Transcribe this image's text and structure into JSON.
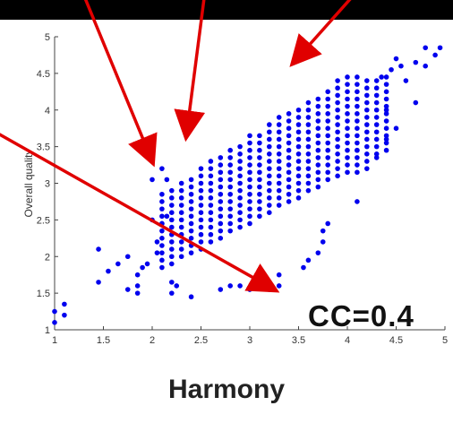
{
  "chart_data": {
    "type": "scatter",
    "xlabel": "Harmony",
    "ylabel": "Overall quality",
    "xlim": [
      1,
      5
    ],
    "ylim": [
      1,
      5
    ],
    "x_ticks": [
      "1",
      "1.5",
      "2",
      "2.5",
      "3",
      "3.5",
      "4",
      "4.5",
      "5"
    ],
    "y_ticks": [
      "1",
      "1.5",
      "2",
      "2.5",
      "3",
      "3.5",
      "4",
      "4.5",
      "5"
    ],
    "annotation": "CC=0.4",
    "marker_color": "#0000ee",
    "arrow_color": "#e00000",
    "arrow_targets": [
      {
        "x": 2.0,
        "y": 3.3
      },
      {
        "x": 2.35,
        "y": 3.65
      },
      {
        "x": 3.45,
        "y": 4.65
      },
      {
        "x": 3.25,
        "y": 1.55
      }
    ],
    "points": [
      [
        1.0,
        1.1
      ],
      [
        1.0,
        1.25
      ],
      [
        1.1,
        1.2
      ],
      [
        1.1,
        1.35
      ],
      [
        1.45,
        1.65
      ],
      [
        1.45,
        2.1
      ],
      [
        1.55,
        1.8
      ],
      [
        1.65,
        1.9
      ],
      [
        1.75,
        1.55
      ],
      [
        1.75,
        2.0
      ],
      [
        1.85,
        1.5
      ],
      [
        1.85,
        1.6
      ],
      [
        1.85,
        1.75
      ],
      [
        1.9,
        1.85
      ],
      [
        1.95,
        1.9
      ],
      [
        2.0,
        2.5
      ],
      [
        2.0,
        3.05
      ],
      [
        2.0,
        3.3
      ],
      [
        2.05,
        2.05
      ],
      [
        2.05,
        2.2
      ],
      [
        2.1,
        2.45
      ],
      [
        2.1,
        3.2
      ],
      [
        2.15,
        2.55
      ],
      [
        2.15,
        3.05
      ],
      [
        2.2,
        1.5
      ],
      [
        2.2,
        1.65
      ],
      [
        2.25,
        1.6
      ],
      [
        2.4,
        1.45
      ],
      [
        2.7,
        1.55
      ],
      [
        2.8,
        1.6
      ],
      [
        2.9,
        1.6
      ],
      [
        3.0,
        1.55
      ],
      [
        3.05,
        1.65
      ],
      [
        3.2,
        1.55
      ],
      [
        3.3,
        1.6
      ],
      [
        3.3,
        1.75
      ],
      [
        3.45,
        4.65
      ],
      [
        3.55,
        1.85
      ],
      [
        3.6,
        1.95
      ],
      [
        3.7,
        2.05
      ],
      [
        3.75,
        2.2
      ],
      [
        3.75,
        2.35
      ],
      [
        3.8,
        2.45
      ],
      [
        4.1,
        2.75
      ],
      [
        4.1,
        3.15
      ],
      [
        4.1,
        3.45
      ],
      [
        4.2,
        3.2
      ],
      [
        4.3,
        3.35
      ],
      [
        4.4,
        3.6
      ],
      [
        4.5,
        3.75
      ],
      [
        4.4,
        4.0
      ],
      [
        4.35,
        4.45
      ],
      [
        4.45,
        4.55
      ],
      [
        4.55,
        4.6
      ],
      [
        4.5,
        4.7
      ],
      [
        4.6,
        4.4
      ],
      [
        4.7,
        4.1
      ],
      [
        4.7,
        4.65
      ],
      [
        4.8,
        4.85
      ],
      [
        4.8,
        4.6
      ],
      [
        4.9,
        4.75
      ],
      [
        4.95,
        4.85
      ]
    ]
  }
}
